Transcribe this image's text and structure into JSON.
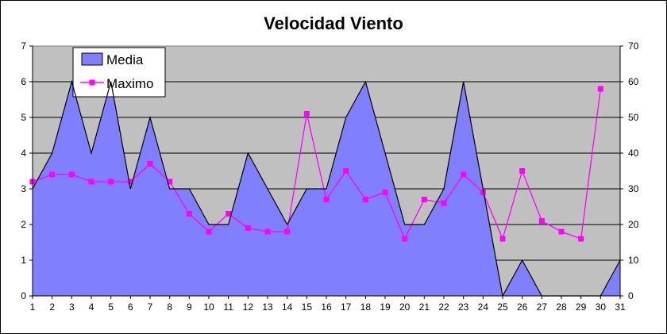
{
  "chart_data": {
    "type": "area",
    "title": "Velocidad Viento",
    "categories": [
      "1",
      "2",
      "3",
      "4",
      "5",
      "6",
      "7",
      "8",
      "9",
      "10",
      "11",
      "12",
      "13",
      "14",
      "15",
      "16",
      "17",
      "18",
      "19",
      "20",
      "21",
      "22",
      "23",
      "24",
      "25",
      "26",
      "27",
      "28",
      "29",
      "30",
      "31"
    ],
    "series": [
      {
        "name": "Media",
        "type": "area",
        "axis": "left",
        "color": "#8080ff",
        "values": [
          3,
          4,
          6,
          4,
          6,
          3,
          5,
          3,
          3,
          2,
          2,
          4,
          3,
          2,
          3,
          3,
          5,
          6,
          4,
          2,
          2,
          3,
          6,
          3,
          0,
          1,
          0,
          0,
          0,
          0,
          1
        ]
      },
      {
        "name": "Maximo",
        "type": "line",
        "axis": "right",
        "color": "#ff00ff",
        "values": [
          32,
          34,
          34,
          32,
          32,
          32,
          37,
          32,
          23,
          18,
          23,
          19,
          18,
          18,
          51,
          27,
          35,
          27,
          29,
          16,
          27,
          26,
          34,
          29,
          16,
          35,
          21,
          18,
          16,
          58,
          null
        ]
      }
    ],
    "y_left": {
      "min": 0,
      "max": 7,
      "ticks": [
        "0",
        "1",
        "2",
        "3",
        "4",
        "5",
        "6",
        "7"
      ]
    },
    "y_right": {
      "min": 0,
      "max": 70,
      "ticks": [
        "0",
        "10",
        "20",
        "30",
        "40",
        "50",
        "60",
        "70"
      ]
    },
    "plot_background": "#c0c0c0",
    "grid": true,
    "legend_position": "top-left"
  }
}
